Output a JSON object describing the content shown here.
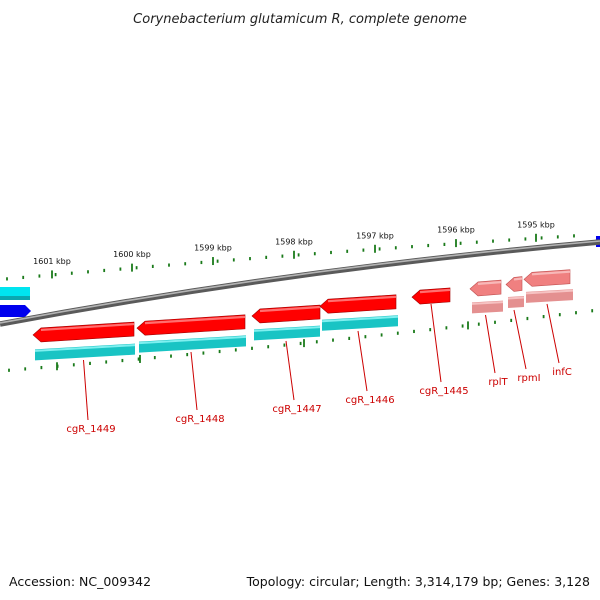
{
  "title": "Corynebacterium glutamicum R, complete genome",
  "accession_text": "Accession: NC_009342",
  "stats_text": "Topology: circular; Length: 3,314,179 bp; Genes: 3,128",
  "colors": {
    "backbone": "#8a8a8a",
    "gene_forward": "#ff0000",
    "gene_forward_faded": "#f08080",
    "shadow_cyan": "#19c4c4",
    "shadow_faded": "#e49090",
    "edge_cyan": "#00e5f0",
    "edge_blue": "#0000ee",
    "tick": "#1a7a1a",
    "label": "#cc0000"
  },
  "scale_ticks": [
    {
      "label": "1601 kbp"
    },
    {
      "label": "1600 kbp"
    },
    {
      "label": "1599 kbp"
    },
    {
      "label": "1598 kbp"
    },
    {
      "label": "1597 kbp"
    },
    {
      "label": "1596 kbp"
    },
    {
      "label": "1595 kbp"
    }
  ],
  "genes": [
    {
      "label": "cgR_1449",
      "strand": "minus",
      "style": "main"
    },
    {
      "label": "cgR_1448",
      "strand": "minus",
      "style": "main"
    },
    {
      "label": "cgR_1447",
      "strand": "minus",
      "style": "main"
    },
    {
      "label": "cgR_1446",
      "strand": "minus",
      "style": "main"
    },
    {
      "label": "cgR_1445",
      "strand": "minus",
      "style": "solo"
    },
    {
      "label": "rplT",
      "strand": "minus",
      "style": "faded"
    },
    {
      "label": "rpmI",
      "strand": "minus",
      "style": "faded"
    },
    {
      "label": "infC",
      "strand": "minus",
      "style": "faded"
    }
  ]
}
